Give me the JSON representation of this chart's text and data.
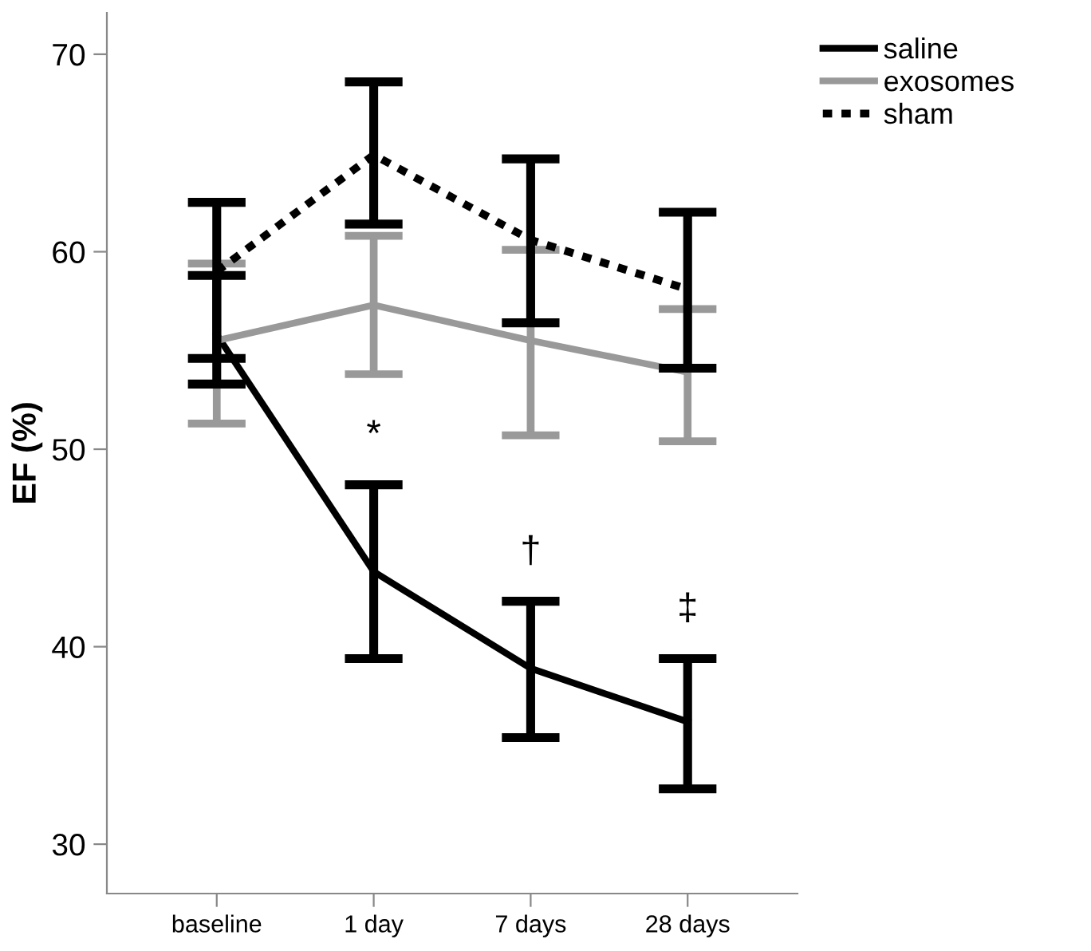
{
  "chart_data": {
    "type": "line",
    "ylabel": "EF (%)",
    "categories": [
      "baseline",
      "1 day",
      "7 days",
      "28 days"
    ],
    "ylim": [
      27.5,
      72.1
    ],
    "yticks": [
      30,
      40,
      50,
      60,
      70
    ],
    "grid": false,
    "legend": "top right",
    "marker": "none",
    "series": [
      {
        "name": "saline",
        "color": "#000000",
        "line_style": "solid",
        "values": [
          55.8,
          43.8,
          38.9,
          36.2
        ],
        "errors": [
          [
            53.3,
            58.8
          ],
          [
            39.4,
            48.2
          ],
          [
            35.4,
            42.3
          ],
          [
            32.8,
            39.4
          ]
        ]
      },
      {
        "name": "exosomes",
        "color": "#999999",
        "line_style": "solid",
        "values": [
          55.5,
          57.3,
          55.5,
          53.9
        ],
        "errors": [
          [
            51.3,
            59.4
          ],
          [
            53.8,
            60.8
          ],
          [
            50.7,
            60.1
          ],
          [
            50.4,
            57.1
          ]
        ]
      },
      {
        "name": "sham",
        "color": "#000000",
        "line_style": "dotted",
        "values": [
          59.0,
          64.9,
          60.6,
          58.1
        ],
        "errors": [
          [
            54.6,
            62.5
          ],
          [
            61.4,
            68.6
          ],
          [
            56.4,
            64.7
          ],
          [
            54.1,
            62.0
          ]
        ]
      }
    ],
    "annotations": [
      "*",
      "†",
      "‡"
    ]
  }
}
